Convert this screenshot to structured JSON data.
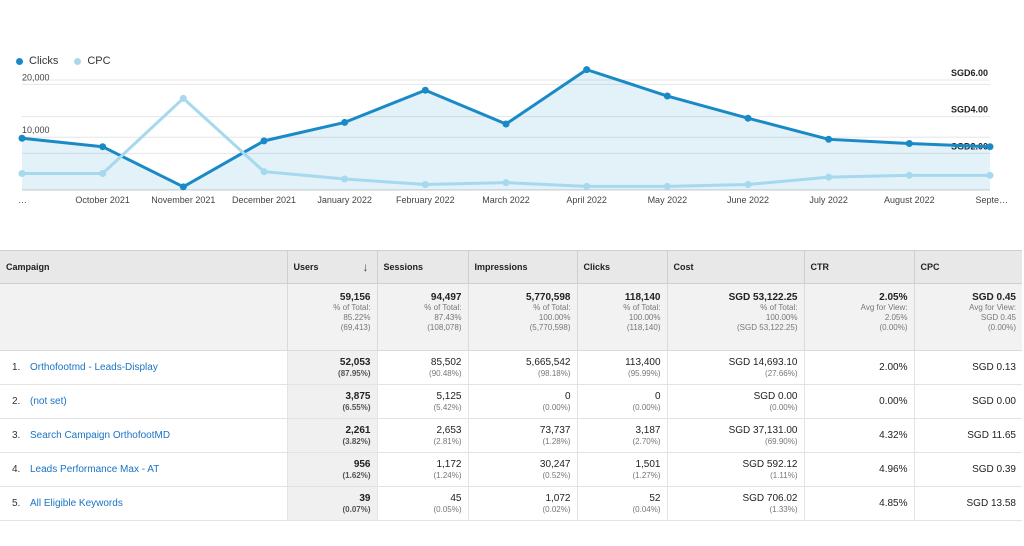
{
  "chart_data": {
    "type": "line",
    "categories": [
      "…",
      "October 2021",
      "November 2021",
      "December 2021",
      "January 2022",
      "February 2022",
      "March 2022",
      "April 2022",
      "May 2022",
      "June 2022",
      "July 2022",
      "August 2022",
      "Septe…"
    ],
    "series": [
      {
        "name": "Clicks",
        "axis": "left",
        "color": "#1a8ac7",
        "values": [
          9800,
          8200,
          600,
          9300,
          12800,
          18900,
          12500,
          22800,
          17800,
          13600,
          9600,
          8800,
          8200
        ]
      },
      {
        "name": "CPC",
        "axis": "right",
        "color": "#a6d9ee",
        "values": [
          0.9,
          0.9,
          5.0,
          1.0,
          0.6,
          0.3,
          0.4,
          0.2,
          0.2,
          0.3,
          0.7,
          0.8,
          0.8
        ]
      }
    ],
    "y_left": {
      "ticks": [
        "20,000",
        "10,000"
      ],
      "range": [
        0,
        25000
      ]
    },
    "y_right": {
      "ticks": [
        "SGD6.00",
        "SGD4.00",
        "SGD2.00"
      ],
      "range": [
        0,
        7.2
      ]
    },
    "legend": "top-left",
    "area_fill": "Clicks"
  },
  "legend": [
    {
      "label": "Clicks",
      "color": "#1a8ac7"
    },
    {
      "label": "CPC",
      "color": "#a6d9ee"
    }
  ],
  "table": {
    "headers": {
      "campaign": "Campaign",
      "users": "Users",
      "sessions": "Sessions",
      "impressions": "Impressions",
      "clicks": "Clicks",
      "cost": "Cost",
      "ctr": "CTR",
      "cpc": "CPC",
      "sort_icon": "↓"
    },
    "totals": {
      "users": {
        "main": "59,156",
        "l1": "% of Total:",
        "l2": "85.22%",
        "l3": "(69,413)"
      },
      "sessions": {
        "main": "94,497",
        "l1": "% of Total:",
        "l2": "87.43%",
        "l3": "(108,078)"
      },
      "impressions": {
        "main": "5,770,598",
        "l1": "% of Total:",
        "l2": "100.00%",
        "l3": "(5,770,598)"
      },
      "clicks": {
        "main": "118,140",
        "l1": "% of Total:",
        "l2": "100.00%",
        "l3": "(118,140)"
      },
      "cost": {
        "main": "SGD 53,122.25",
        "l1": "% of Total:",
        "l2": "100.00%",
        "l3": "(SGD 53,122.25)"
      },
      "ctr": {
        "main": "2.05%",
        "l1": "Avg for View:",
        "l2": "2.05%",
        "l3": "(0.00%)"
      },
      "cpc": {
        "main": "SGD 0.45",
        "l1": "Avg for View:",
        "l2": "SGD 0.45",
        "l3": "(0.00%)"
      }
    },
    "rows": [
      {
        "rank": "1.",
        "campaign": "Orthofootmd - Leads-Display",
        "users": "52,053",
        "users_p": "(87.95%)",
        "sessions": "85,502",
        "sessions_p": "(90.48%)",
        "impressions": "5,665,542",
        "impressions_p": "(98.18%)",
        "clicks": "113,400",
        "clicks_p": "(95.99%)",
        "cost": "SGD 14,693.10",
        "cost_p": "(27.66%)",
        "ctr": "2.00%",
        "cpc": "SGD 0.13"
      },
      {
        "rank": "2.",
        "campaign": "(not set)",
        "users": "3,875",
        "users_p": "(6.55%)",
        "sessions": "5,125",
        "sessions_p": "(5.42%)",
        "impressions": "0",
        "impressions_p": "(0.00%)",
        "clicks": "0",
        "clicks_p": "(0.00%)",
        "cost": "SGD 0.00",
        "cost_p": "(0.00%)",
        "ctr": "0.00%",
        "cpc": "SGD 0.00"
      },
      {
        "rank": "3.",
        "campaign": "Search Campaign OrthofootMD",
        "users": "2,261",
        "users_p": "(3.82%)",
        "sessions": "2,653",
        "sessions_p": "(2.81%)",
        "impressions": "73,737",
        "impressions_p": "(1.28%)",
        "clicks": "3,187",
        "clicks_p": "(2.70%)",
        "cost": "SGD 37,131.00",
        "cost_p": "(69.90%)",
        "ctr": "4.32%",
        "cpc": "SGD 11.65"
      },
      {
        "rank": "4.",
        "campaign": "Leads Performance Max - AT",
        "users": "956",
        "users_p": "(1.62%)",
        "sessions": "1,172",
        "sessions_p": "(1.24%)",
        "impressions": "30,247",
        "impressions_p": "(0.52%)",
        "clicks": "1,501",
        "clicks_p": "(1.27%)",
        "cost": "SGD 592.12",
        "cost_p": "(1.11%)",
        "ctr": "4.96%",
        "cpc": "SGD 0.39"
      },
      {
        "rank": "5.",
        "campaign": "All Eligible Keywords",
        "users": "39",
        "users_p": "(0.07%)",
        "sessions": "45",
        "sessions_p": "(0.05%)",
        "impressions": "1,072",
        "impressions_p": "(0.02%)",
        "clicks": "52",
        "clicks_p": "(0.04%)",
        "cost": "SGD 706.02",
        "cost_p": "(1.33%)",
        "ctr": "4.85%",
        "cpc": "SGD 13.58"
      }
    ]
  }
}
